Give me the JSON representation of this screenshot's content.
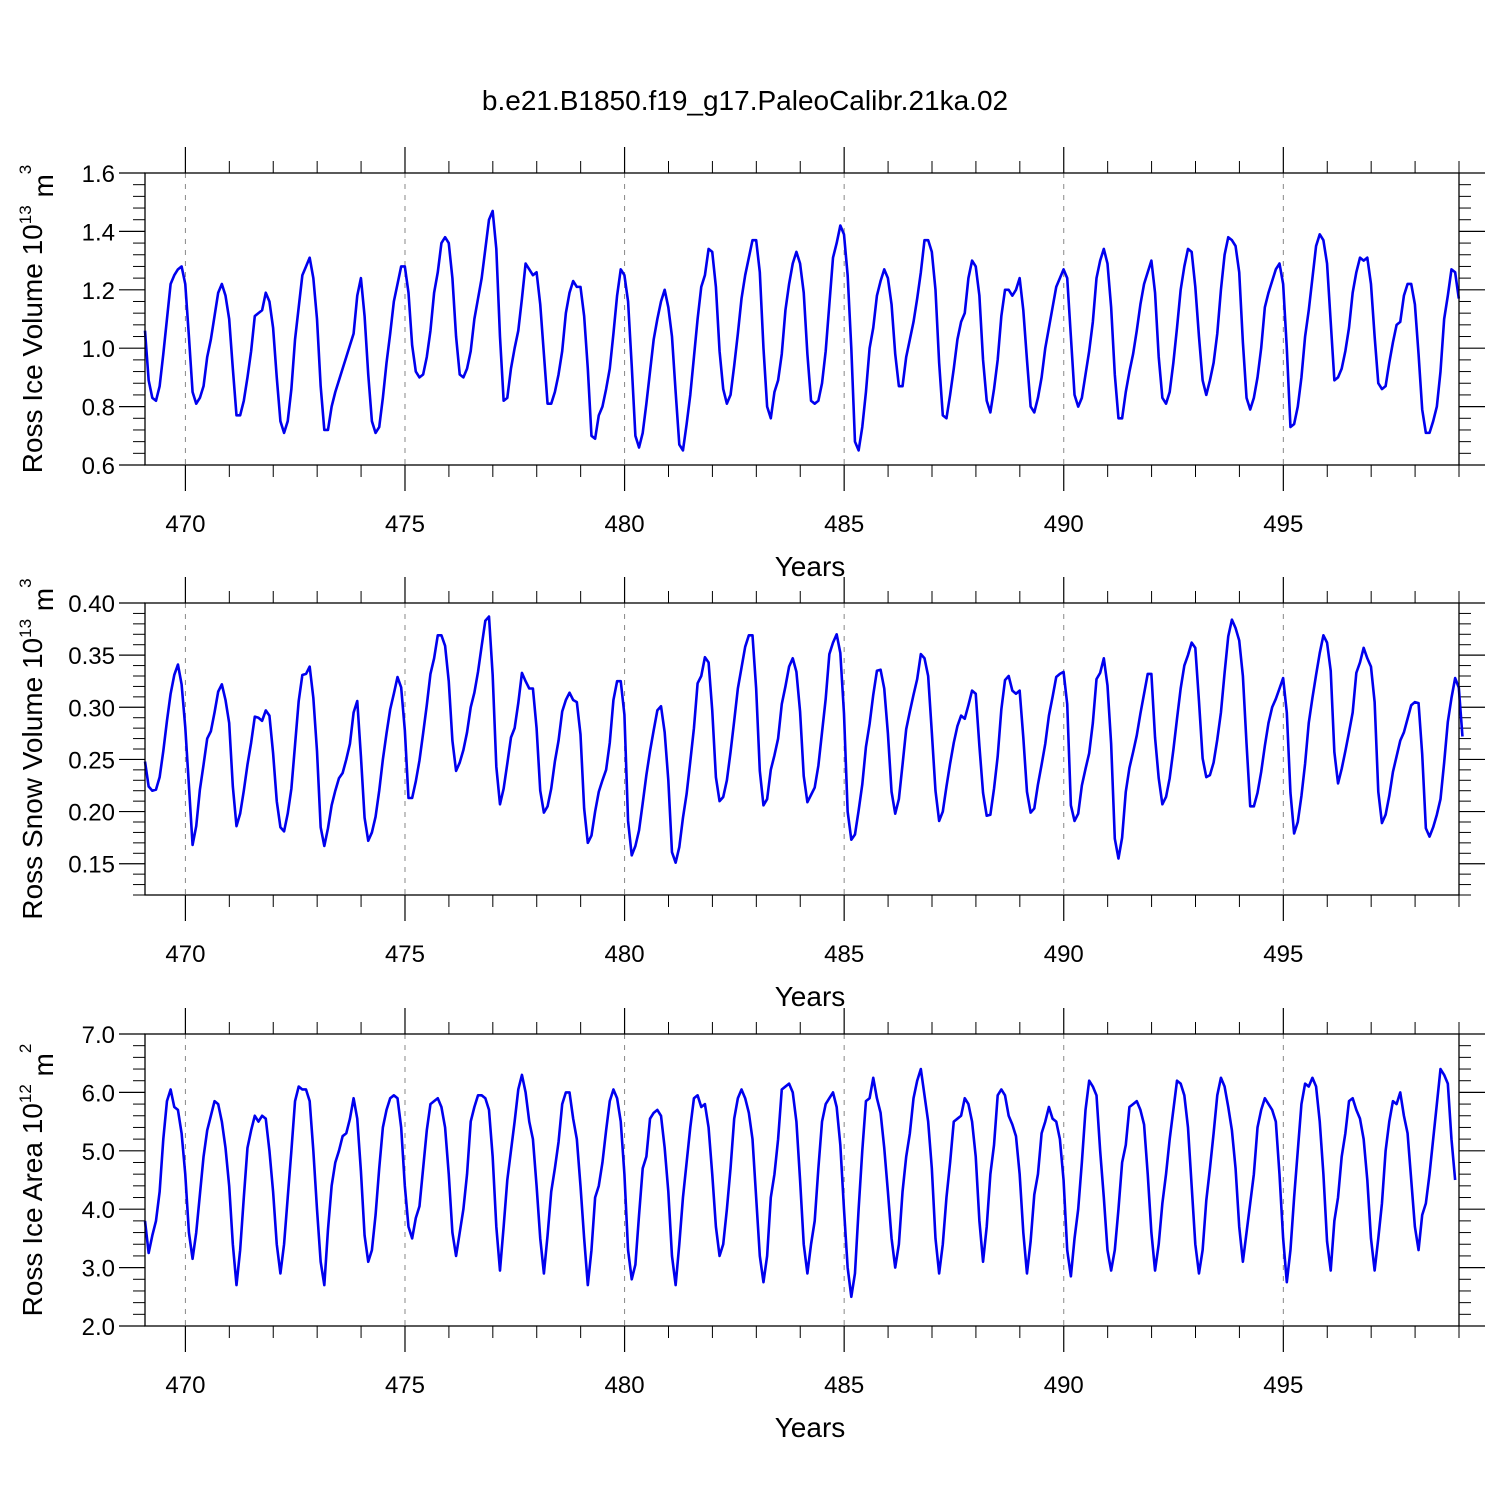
{
  "title": "b.e21.B1850.f19_g17.PaleoCalibr.21ka.02",
  "series_color": "#0000ee",
  "chart_data": [
    {
      "type": "line",
      "ylabel": {
        "main": "Ross Ice Volume 10",
        "exp": "13",
        "unit": " m",
        "unit_exp": "3"
      },
      "xlabel": "Years",
      "xlim": [
        469.08,
        499.0
      ],
      "ylim": [
        0.6,
        1.6
      ],
      "xticks": [
        "470",
        "475",
        "480",
        "485",
        "490",
        "495"
      ],
      "yticks": [
        "0.6",
        "0.8",
        "1.0",
        "1.2",
        "1.4",
        "1.6"
      ],
      "x_start": 469.08,
      "x_step": 0.08333,
      "values": [
        1.06,
        0.89,
        0.83,
        0.82,
        0.87,
        0.98,
        1.1,
        1.22,
        1.25,
        1.27,
        1.28,
        1.22,
        1.04,
        0.85,
        0.81,
        0.83,
        0.87,
        0.97,
        1.03,
        1.11,
        1.19,
        1.22,
        1.18,
        1.1,
        0.93,
        0.77,
        0.77,
        0.82,
        0.9,
        0.99,
        1.11,
        1.12,
        1.13,
        1.19,
        1.16,
        1.07,
        0.9,
        0.75,
        0.71,
        0.75,
        0.86,
        1.03,
        1.14,
        1.25,
        1.28,
        1.31,
        1.24,
        1.1,
        0.87,
        0.72,
        0.72,
        0.8,
        0.85,
        0.89,
        0.93,
        0.97,
        1.01,
        1.05,
        1.18,
        1.24,
        1.11,
        0.91,
        0.75,
        0.71,
        0.73,
        0.83,
        0.95,
        1.05,
        1.16,
        1.22,
        1.28,
        1.28,
        1.19,
        1.01,
        0.92,
        0.9,
        0.91,
        0.97,
        1.06,
        1.19,
        1.26,
        1.36,
        1.38,
        1.36,
        1.24,
        1.04,
        0.91,
        0.9,
        0.93,
        0.99,
        1.1,
        1.17,
        1.24,
        1.34,
        1.44,
        1.47,
        1.34,
        1.04,
        0.82,
        0.83,
        0.93,
        1.0,
        1.06,
        1.17,
        1.29,
        1.27,
        1.25,
        1.26,
        1.15,
        0.98,
        0.81,
        0.81,
        0.85,
        0.91,
        0.99,
        1.12,
        1.19,
        1.23,
        1.21,
        1.21,
        1.11,
        0.93,
        0.7,
        0.69,
        0.77,
        0.8,
        0.86,
        0.93,
        1.05,
        1.18,
        1.27,
        1.25,
        1.16,
        0.94,
        0.7,
        0.66,
        0.71,
        0.81,
        0.92,
        1.03,
        1.1,
        1.16,
        1.2,
        1.14,
        1.04,
        0.85,
        0.67,
        0.65,
        0.74,
        0.84,
        0.97,
        1.1,
        1.21,
        1.25,
        1.34,
        1.33,
        1.21,
        0.99,
        0.86,
        0.81,
        0.84,
        0.94,
        1.05,
        1.17,
        1.25,
        1.31,
        1.37,
        1.37,
        1.26,
        1.0,
        0.8,
        0.76,
        0.85,
        0.89,
        0.98,
        1.13,
        1.22,
        1.29,
        1.33,
        1.29,
        1.19,
        0.98,
        0.82,
        0.81,
        0.82,
        0.88,
        0.99,
        1.15,
        1.31,
        1.36,
        1.42,
        1.39,
        1.25,
        1.0,
        0.68,
        0.65,
        0.73,
        0.85,
        1.0,
        1.07,
        1.18,
        1.23,
        1.27,
        1.24,
        1.15,
        0.98,
        0.87,
        0.87,
        0.97,
        1.03,
        1.09,
        1.17,
        1.26,
        1.37,
        1.37,
        1.33,
        1.2,
        0.95,
        0.77,
        0.76,
        0.84,
        0.93,
        1.03,
        1.09,
        1.12,
        1.24,
        1.3,
        1.28,
        1.18,
        0.96,
        0.82,
        0.78,
        0.86,
        0.96,
        1.11,
        1.2,
        1.2,
        1.18,
        1.2,
        1.24,
        1.13,
        0.96,
        0.8,
        0.78,
        0.83,
        0.9,
        1.0,
        1.07,
        1.14,
        1.21,
        1.24,
        1.27,
        1.24,
        1.04,
        0.84,
        0.8,
        0.83,
        0.91,
        0.99,
        1.09,
        1.24,
        1.3,
        1.34,
        1.29,
        1.14,
        0.91,
        0.76,
        0.76,
        0.85,
        0.92,
        0.98,
        1.06,
        1.15,
        1.22,
        1.26,
        1.3,
        1.19,
        0.97,
        0.83,
        0.81,
        0.85,
        0.95,
        1.07,
        1.2,
        1.28,
        1.34,
        1.33,
        1.21,
        1.04,
        0.89,
        0.84,
        0.89,
        0.95,
        1.05,
        1.2,
        1.32,
        1.38,
        1.37,
        1.35,
        1.26,
        1.02,
        0.83,
        0.79,
        0.83,
        0.9,
        1.0,
        1.14,
        1.19,
        1.23,
        1.27,
        1.29,
        1.22,
        1.0,
        0.73,
        0.74,
        0.8,
        0.9,
        1.04,
        1.13,
        1.24,
        1.35,
        1.39,
        1.37,
        1.29,
        1.09,
        0.89,
        0.9,
        0.93,
        0.99,
        1.07,
        1.19,
        1.26,
        1.31,
        1.3,
        1.31,
        1.22,
        1.04,
        0.88,
        0.86,
        0.87,
        0.95,
        1.02,
        1.08,
        1.09,
        1.18,
        1.22,
        1.22,
        1.15,
        0.98,
        0.79,
        0.71,
        0.71,
        0.75,
        0.8,
        0.92,
        1.1,
        1.18,
        1.27,
        1.26,
        1.17
      ]
    },
    {
      "type": "line",
      "ylabel": {
        "main": "Ross Snow Volume 10",
        "exp": "13",
        "unit": " m",
        "unit_exp": "3"
      },
      "xlabel": "Years",
      "xlim": [
        469.08,
        499.0
      ],
      "ylim": [
        0.12,
        0.4
      ],
      "xticks": [
        "470",
        "475",
        "480",
        "485",
        "490",
        "495"
      ],
      "yticks": [
        "0.15",
        "0.20",
        "0.25",
        "0.30",
        "0.35",
        "0.40"
      ],
      "x_start": 469.08,
      "x_step": 0.08333,
      "values": [
        0.248,
        0.224,
        0.22,
        0.221,
        0.233,
        0.258,
        0.287,
        0.313,
        0.331,
        0.341,
        0.322,
        0.281,
        0.225,
        0.168,
        0.186,
        0.221,
        0.245,
        0.27,
        0.277,
        0.295,
        0.315,
        0.322,
        0.307,
        0.285,
        0.224,
        0.186,
        0.198,
        0.22,
        0.245,
        0.266,
        0.291,
        0.29,
        0.287,
        0.297,
        0.292,
        0.256,
        0.21,
        0.185,
        0.181,
        0.198,
        0.222,
        0.264,
        0.306,
        0.331,
        0.332,
        0.339,
        0.309,
        0.258,
        0.185,
        0.167,
        0.184,
        0.206,
        0.22,
        0.232,
        0.237,
        0.25,
        0.265,
        0.295,
        0.306,
        0.253,
        0.194,
        0.172,
        0.18,
        0.195,
        0.22,
        0.25,
        0.275,
        0.298,
        0.313,
        0.329,
        0.319,
        0.278,
        0.213,
        0.213,
        0.229,
        0.249,
        0.275,
        0.302,
        0.332,
        0.347,
        0.369,
        0.369,
        0.359,
        0.325,
        0.268,
        0.239,
        0.247,
        0.259,
        0.276,
        0.3,
        0.314,
        0.334,
        0.359,
        0.383,
        0.387,
        0.331,
        0.243,
        0.207,
        0.222,
        0.246,
        0.271,
        0.28,
        0.304,
        0.333,
        0.325,
        0.318,
        0.318,
        0.28,
        0.22,
        0.199,
        0.205,
        0.222,
        0.248,
        0.268,
        0.296,
        0.307,
        0.314,
        0.307,
        0.305,
        0.274,
        0.203,
        0.17,
        0.177,
        0.2,
        0.219,
        0.23,
        0.24,
        0.266,
        0.307,
        0.325,
        0.325,
        0.293,
        0.191,
        0.158,
        0.167,
        0.182,
        0.208,
        0.235,
        0.258,
        0.278,
        0.297,
        0.301,
        0.276,
        0.23,
        0.161,
        0.151,
        0.166,
        0.194,
        0.217,
        0.248,
        0.28,
        0.323,
        0.33,
        0.348,
        0.343,
        0.297,
        0.233,
        0.21,
        0.214,
        0.23,
        0.257,
        0.287,
        0.318,
        0.338,
        0.358,
        0.369,
        0.369,
        0.318,
        0.239,
        0.206,
        0.212,
        0.24,
        0.254,
        0.27,
        0.303,
        0.32,
        0.339,
        0.347,
        0.334,
        0.296,
        0.234,
        0.209,
        0.216,
        0.223,
        0.244,
        0.276,
        0.308,
        0.351,
        0.362,
        0.37,
        0.352,
        0.294,
        0.2,
        0.173,
        0.178,
        0.201,
        0.226,
        0.262,
        0.284,
        0.312,
        0.335,
        0.336,
        0.318,
        0.275,
        0.219,
        0.198,
        0.212,
        0.245,
        0.279,
        0.296,
        0.312,
        0.327,
        0.351,
        0.347,
        0.33,
        0.276,
        0.22,
        0.191,
        0.2,
        0.224,
        0.246,
        0.266,
        0.282,
        0.292,
        0.289,
        0.302,
        0.316,
        0.313,
        0.263,
        0.218,
        0.196,
        0.197,
        0.222,
        0.253,
        0.298,
        0.326,
        0.33,
        0.316,
        0.313,
        0.316,
        0.271,
        0.219,
        0.199,
        0.203,
        0.226,
        0.245,
        0.265,
        0.292,
        0.31,
        0.329,
        0.332,
        0.334,
        0.303,
        0.206,
        0.191,
        0.198,
        0.225,
        0.241,
        0.256,
        0.285,
        0.327,
        0.333,
        0.347,
        0.321,
        0.265,
        0.174,
        0.155,
        0.175,
        0.219,
        0.242,
        0.257,
        0.273,
        0.294,
        0.313,
        0.332,
        0.332,
        0.271,
        0.232,
        0.207,
        0.214,
        0.232,
        0.259,
        0.289,
        0.318,
        0.34,
        0.35,
        0.362,
        0.357,
        0.306,
        0.251,
        0.233,
        0.235,
        0.247,
        0.269,
        0.295,
        0.333,
        0.368,
        0.384,
        0.376,
        0.364,
        0.33,
        0.265,
        0.205,
        0.205,
        0.218,
        0.238,
        0.263,
        0.285,
        0.3,
        0.308,
        0.318,
        0.328,
        0.295,
        0.218,
        0.179,
        0.19,
        0.215,
        0.246,
        0.285,
        0.309,
        0.331,
        0.352,
        0.369,
        0.362,
        0.335,
        0.257,
        0.227,
        0.241,
        0.258,
        0.276,
        0.295,
        0.333,
        0.343,
        0.357,
        0.347,
        0.339,
        0.305,
        0.219,
        0.189,
        0.197,
        0.215,
        0.238,
        0.253,
        0.268,
        0.276,
        0.289,
        0.302,
        0.305,
        0.304,
        0.255,
        0.184,
        0.176,
        0.185,
        0.197,
        0.212,
        0.247,
        0.286,
        0.309,
        0.328,
        0.319,
        0.272
      ]
    },
    {
      "type": "line",
      "ylabel": {
        "main": "Ross Ice Area 10",
        "exp": "12",
        "unit": " m",
        "unit_exp": "2"
      },
      "xlabel": "Years",
      "xlim": [
        469.08,
        499.0
      ],
      "ylim": [
        2.0,
        7.0
      ],
      "xticks": [
        "470",
        "475",
        "480",
        "485",
        "490",
        "495"
      ],
      "yticks": [
        "2.0",
        "3.0",
        "4.0",
        "5.0",
        "6.0",
        "7.0"
      ],
      "x_start": 469.08,
      "x_step": 0.08333,
      "values": [
        3.8,
        3.25,
        3.55,
        3.8,
        4.3,
        5.2,
        5.85,
        6.05,
        5.75,
        5.7,
        5.3,
        4.6,
        3.6,
        3.15,
        3.6,
        4.25,
        4.9,
        5.35,
        5.6,
        5.85,
        5.8,
        5.5,
        5.05,
        4.4,
        3.4,
        2.7,
        3.3,
        4.2,
        5.05,
        5.35,
        5.6,
        5.5,
        5.6,
        5.55,
        5.0,
        4.3,
        3.4,
        2.9,
        3.4,
        4.2,
        5.0,
        5.85,
        6.1,
        6.05,
        6.05,
        5.85,
        5.0,
        4.0,
        3.1,
        2.7,
        3.65,
        4.4,
        4.8,
        5.0,
        5.25,
        5.3,
        5.55,
        5.9,
        5.55,
        4.65,
        3.55,
        3.1,
        3.3,
        3.9,
        4.7,
        5.4,
        5.7,
        5.9,
        5.95,
        5.9,
        5.4,
        4.4,
        3.7,
        3.5,
        3.85,
        4.05,
        4.7,
        5.35,
        5.8,
        5.85,
        5.9,
        5.75,
        5.4,
        4.6,
        3.6,
        3.2,
        3.6,
        4.0,
        4.6,
        5.5,
        5.75,
        5.95,
        5.95,
        5.9,
        5.7,
        4.9,
        3.7,
        2.95,
        3.7,
        4.5,
        5.0,
        5.5,
        6.05,
        6.3,
        6.0,
        5.5,
        5.2,
        4.4,
        3.5,
        2.9,
        3.55,
        4.3,
        4.7,
        5.15,
        5.8,
        6.0,
        6.0,
        5.55,
        5.2,
        4.4,
        3.5,
        2.7,
        3.3,
        4.2,
        4.4,
        4.8,
        5.35,
        5.85,
        6.05,
        5.9,
        5.5,
        4.6,
        3.3,
        2.8,
        3.05,
        3.9,
        4.7,
        4.9,
        5.55,
        5.65,
        5.7,
        5.6,
        5.05,
        4.3,
        3.2,
        2.7,
        3.4,
        4.2,
        4.8,
        5.4,
        5.9,
        5.95,
        5.75,
        5.8,
        5.4,
        4.6,
        3.7,
        3.2,
        3.4,
        4.0,
        4.7,
        5.55,
        5.9,
        6.05,
        5.9,
        5.65,
        5.2,
        4.2,
        3.2,
        2.75,
        3.2,
        4.2,
        4.6,
        5.2,
        6.05,
        6.1,
        6.15,
        6.0,
        5.5,
        4.5,
        3.4,
        2.9,
        3.4,
        3.8,
        4.7,
        5.5,
        5.8,
        5.9,
        6.0,
        5.75,
        5.1,
        4.0,
        3.0,
        2.5,
        2.9,
        4.0,
        5.0,
        5.85,
        5.9,
        6.25,
        5.9,
        5.65,
        5.05,
        4.3,
        3.5,
        3.0,
        3.4,
        4.3,
        4.9,
        5.3,
        5.9,
        6.2,
        6.4,
        5.95,
        5.5,
        4.7,
        3.5,
        2.9,
        3.4,
        4.2,
        4.8,
        5.5,
        5.55,
        5.6,
        5.9,
        5.8,
        5.5,
        4.9,
        3.8,
        3.1,
        3.7,
        4.6,
        5.1,
        5.95,
        6.05,
        5.95,
        5.6,
        5.45,
        5.25,
        4.6,
        3.6,
        2.9,
        3.45,
        4.25,
        4.6,
        5.3,
        5.5,
        5.75,
        5.55,
        5.5,
        5.2,
        4.5,
        3.3,
        2.85,
        3.5,
        4.0,
        4.8,
        5.7,
        6.2,
        6.1,
        5.95,
        5.0,
        4.2,
        3.3,
        2.95,
        3.3,
        4.0,
        4.8,
        5.1,
        5.75,
        5.8,
        5.85,
        5.7,
        5.45,
        4.6,
        3.6,
        2.95,
        3.4,
        4.1,
        4.6,
        5.2,
        5.7,
        6.2,
        6.15,
        5.95,
        5.4,
        4.4,
        3.4,
        2.9,
        3.3,
        4.15,
        4.7,
        5.3,
        5.95,
        6.25,
        6.1,
        5.75,
        5.35,
        4.7,
        3.7,
        3.1,
        3.6,
        4.1,
        4.6,
        5.4,
        5.7,
        5.9,
        5.8,
        5.7,
        5.5,
        4.6,
        3.5,
        2.75,
        3.3,
        4.2,
        5.0,
        5.8,
        6.15,
        6.1,
        6.25,
        6.1,
        5.5,
        4.6,
        3.45,
        2.95,
        3.8,
        4.2,
        4.9,
        5.3,
        5.85,
        5.9,
        5.7,
        5.55,
        5.2,
        4.5,
        3.5,
        2.95,
        3.5,
        4.1,
        5.0,
        5.5,
        5.85,
        5.8,
        6.0,
        5.6,
        5.3,
        4.5,
        3.7,
        3.3,
        3.9,
        4.1,
        4.6,
        5.2,
        5.8,
        6.4,
        6.3,
        6.15,
        5.2,
        4.5
      ]
    }
  ]
}
